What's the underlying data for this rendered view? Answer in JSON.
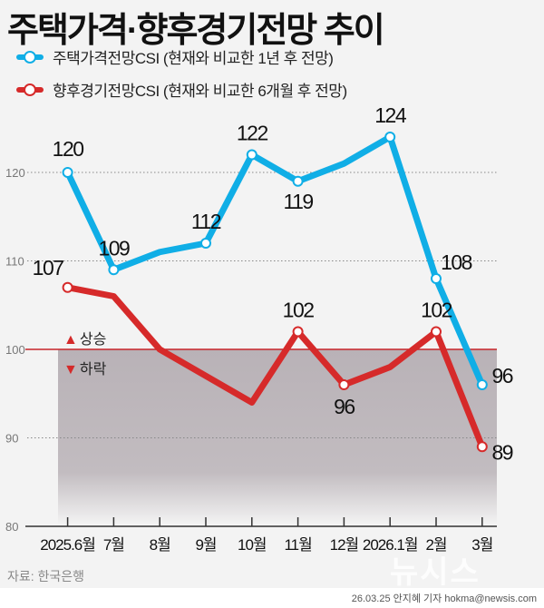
{
  "title": "주택가격·향후경기전망 추이",
  "colors": {
    "housing": "#10aee6",
    "economy": "#d62a2a",
    "shade": "#b9b2b7",
    "baseline": "#c8242a"
  },
  "markers": {
    "up": "상승",
    "down": "하락"
  },
  "source": "자료: 한국은행",
  "credit": "26.03.25 안지혜 기자 hokma@newsis.com",
  "watermark": "뉴시스",
  "chart_data": {
    "type": "line",
    "title": "주택가격·향후경기전망 추이",
    "categories": [
      "2025.6월",
      "7월",
      "8월",
      "9월",
      "10월",
      "11월",
      "12월",
      "2026.1월",
      "2월",
      "3월"
    ],
    "ylim": [
      80,
      125
    ],
    "yticks": [
      "80",
      "90",
      "100",
      "110",
      "120"
    ],
    "grid": true,
    "legend_position": "top-left",
    "baseline": 100,
    "series": [
      {
        "name": "주택가격전망CSI (현재와 비교한 1년 후 전망)",
        "values": [
          120,
          109,
          111,
          112,
          122,
          119,
          121,
          124,
          108,
          96
        ],
        "labels": [
          "120",
          "109",
          "",
          "112",
          "122",
          "119",
          "",
          "124",
          "108",
          "96"
        ]
      },
      {
        "name": "향후경기전망CSI (현재와 비교한 6개월 후 전망)",
        "values": [
          107,
          106,
          100,
          97,
          94,
          102,
          96,
          98,
          102,
          89
        ],
        "labels": [
          "107",
          "",
          "",
          "",
          "",
          "102",
          "96",
          "",
          "102",
          "89"
        ]
      }
    ]
  }
}
